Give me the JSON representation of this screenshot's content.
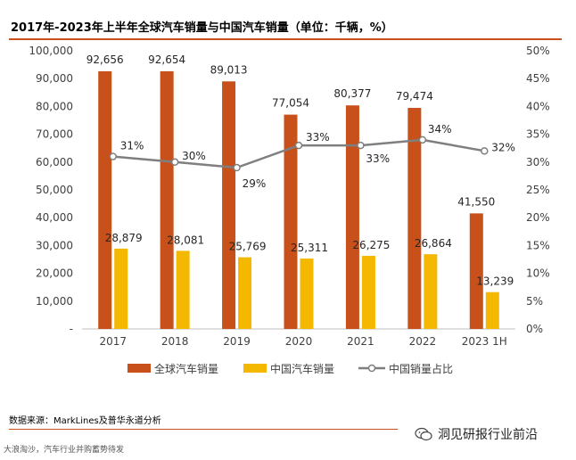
{
  "header": {
    "title": "2017年-2023年上半年全球汽车销量与中国汽车销量（单位：千辆，%）"
  },
  "chart_data": {
    "type": "bar",
    "categories": [
      "2017",
      "2018",
      "2019",
      "2020",
      "2021",
      "2022",
      "2023 1H"
    ],
    "series": [
      {
        "name": "全球汽车销量",
        "kind": "bar",
        "axis": "left",
        "color": "#c8501a",
        "values": [
          92656,
          92654,
          89013,
          77054,
          80377,
          79474,
          41550
        ],
        "labels": [
          "92,656",
          "92,654",
          "89,013",
          "77,054",
          "80,377",
          "79,474",
          "41,550"
        ]
      },
      {
        "name": "中国汽车销量",
        "kind": "bar",
        "axis": "left",
        "color": "#f5b800",
        "values": [
          28879,
          28081,
          25769,
          25311,
          26275,
          26864,
          13239
        ],
        "labels": [
          "28,879",
          "28,081",
          "25,769",
          "25,311",
          "26,275",
          "26,864",
          "13,239"
        ]
      },
      {
        "name": "中国销量占比",
        "kind": "line",
        "axis": "right",
        "color": "#7f7f7f",
        "values": [
          31,
          30,
          29,
          33,
          33,
          34,
          32
        ],
        "labels": [
          "31%",
          "30%",
          "29%",
          "33%",
          "33%",
          "34%",
          "32%"
        ]
      }
    ],
    "y_left": {
      "min": 0,
      "max": 100000,
      "step": 10000,
      "tick_labels": [
        "-",
        "10,000",
        "20,000",
        "30,000",
        "40,000",
        "50,000",
        "60,000",
        "70,000",
        "80,000",
        "90,000",
        "100,000"
      ]
    },
    "y_right": {
      "min": 0,
      "max": 50,
      "step": 5,
      "tick_labels": [
        "0%",
        "5%",
        "10%",
        "15%",
        "20%",
        "25%",
        "30%",
        "35%",
        "40%",
        "45%",
        "50%"
      ]
    },
    "legend_position": "bottom"
  },
  "footer": {
    "source": "数据来源：MarkLines及普华永道分析",
    "wechat_account": "洞见研报行业前沿",
    "watermark": "大浪淘沙，汽车行业并购蓄势待发"
  }
}
